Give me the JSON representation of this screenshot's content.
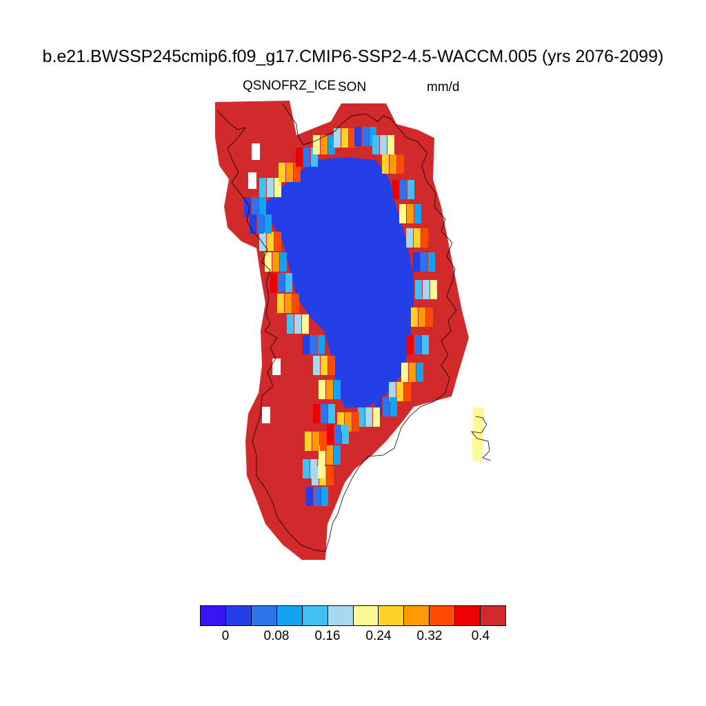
{
  "title": "b.e21.BWSSP245cmip6.f09_g17.CMIP6-SSP2-4.5-WACCM.005 (yrs 2076-2099)",
  "variable": "QSNOFRZ_ICE",
  "season": "SON",
  "units": "mm/d",
  "colorbar": {
    "colors": [
      "#3a14f5",
      "#2340e8",
      "#2f74ec",
      "#14a2f5",
      "#42c0f5",
      "#a6d8f0",
      "#fffa96",
      "#ffd22a",
      "#ff9a00",
      "#ff4a00",
      "#ee0000",
      "#d22a2a"
    ],
    "labels": [
      {
        "text": "0",
        "boundary": 1
      },
      {
        "text": "0.08",
        "boundary": 3
      },
      {
        "text": "0.16",
        "boundary": 5
      },
      {
        "text": "0.24",
        "boundary": 7
      },
      {
        "text": "0.32",
        "boundary": 9
      },
      {
        "text": "0.4",
        "boundary": 11
      }
    ]
  },
  "map_colors": {
    "interior": "#2340e8",
    "coast": "#d22a2a"
  }
}
